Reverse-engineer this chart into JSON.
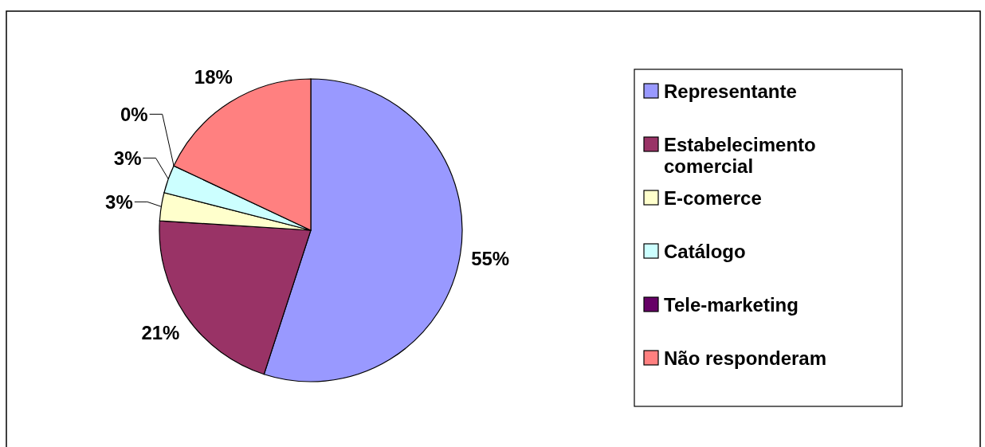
{
  "chart_data": {
    "type": "pie",
    "categories": [
      "Representante",
      "Estabelecimento comercial",
      "E-comerce",
      "Catálogo",
      "Tele-marketing",
      "Não responderam"
    ],
    "values": [
      55,
      21,
      3,
      3,
      0,
      18
    ],
    "value_labels": [
      "55%",
      "21%",
      "3%",
      "3%",
      "0%",
      "18%"
    ],
    "colors": [
      "#9999ff",
      "#993366",
      "#ffffcc",
      "#ccffff",
      "#660066",
      "#ff8080"
    ],
    "legend": "right"
  }
}
